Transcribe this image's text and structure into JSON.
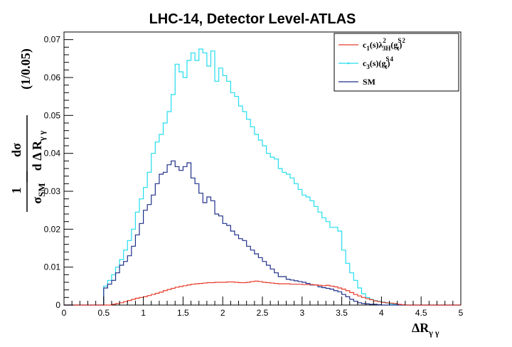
{
  "chart_data": {
    "type": "line",
    "step": true,
    "title": "LHC-14, Detector Level-ATLAS",
    "xlabel": "ΔR",
    "xlabel_sub": "γ γ",
    "ylabel_dsigma_num": "dσ",
    "ylabel_dsigma_den": "d  Δ R",
    "ylabel_dsigma_den_sub": "γ γ",
    "ylabel_norm_num": "1",
    "ylabel_norm_den": "σ",
    "ylabel_norm_den_sub": "SM",
    "ylabel_binwidth": "(1/0.05)",
    "xlim": [
      0,
      5
    ],
    "ylim": [
      0,
      0.072
    ],
    "bin_width": 0.05,
    "x_ticks": [
      "0",
      "0.5",
      "1",
      "1.5",
      "2",
      "2.5",
      "3",
      "3.5",
      "4",
      "4.5",
      "5"
    ],
    "y_ticks": [
      "0",
      "0.01",
      "0.02",
      "0.03",
      "0.04",
      "0.05",
      "0.06",
      "0.07"
    ],
    "grid": false,
    "legend_position": "top-right",
    "series": [
      {
        "key": "c1",
        "color": "#e83a2a",
        "values": [
          0,
          0,
          0,
          0,
          0,
          0,
          0,
          0,
          0,
          0,
          0,
          0,
          0.0002,
          0.0004,
          0.0006,
          0.0009,
          0.0012,
          0.0015,
          0.0018,
          0.002,
          0.0022,
          0.0025,
          0.0028,
          0.0031,
          0.0034,
          0.0038,
          0.0041,
          0.0044,
          0.0047,
          0.0049,
          0.0051,
          0.0053,
          0.0055,
          0.0056,
          0.0057,
          0.0058,
          0.0059,
          0.0059,
          0.006,
          0.006,
          0.006,
          0.0061,
          0.0061,
          0.006,
          0.0059,
          0.0059,
          0.006,
          0.0062,
          0.0063,
          0.0062,
          0.006,
          0.0059,
          0.0058,
          0.0057,
          0.0056,
          0.0056,
          0.0056,
          0.0055,
          0.0055,
          0.0055,
          0.0054,
          0.0054,
          0.0054,
          0.0053,
          0.0052,
          0.0051,
          0.0052,
          0.005,
          0.0048,
          0.0045,
          0.0042,
          0.0038,
          0.0033,
          0.0028,
          0.0024,
          0.002,
          0.0017,
          0.0014,
          0.0011,
          0.0009,
          0.0007,
          0.0006,
          0.0005,
          0.0004,
          0.0002,
          0.0001,
          0,
          0,
          0,
          0,
          0,
          0,
          0,
          0,
          0,
          0,
          0,
          0,
          0,
          0
        ]
      },
      {
        "key": "c3",
        "color": "#22ddee",
        "values": [
          0,
          0,
          0,
          0,
          0,
          0,
          0,
          0,
          0,
          0,
          0.005,
          0.0065,
          0.008,
          0.01,
          0.012,
          0.0145,
          0.017,
          0.02,
          0.0245,
          0.028,
          0.031,
          0.035,
          0.04,
          0.043,
          0.045,
          0.048,
          0.051,
          0.0555,
          0.0635,
          0.0615,
          0.06,
          0.0645,
          0.0665,
          0.0645,
          0.0675,
          0.0665,
          0.063,
          0.067,
          0.059,
          0.0625,
          0.0605,
          0.059,
          0.056,
          0.055,
          0.0525,
          0.051,
          0.049,
          0.047,
          0.045,
          0.0435,
          0.042,
          0.04,
          0.039,
          0.0385,
          0.036,
          0.035,
          0.0345,
          0.0335,
          0.032,
          0.0305,
          0.029,
          0.0285,
          0.0275,
          0.026,
          0.0245,
          0.023,
          0.022,
          0.0205,
          0.0205,
          0.0195,
          0.0145,
          0.011,
          0.0085,
          0.0065,
          0.0045,
          0.003,
          0.002,
          0.0015,
          0.0012,
          0.001,
          0.0008,
          0.0005,
          0.0003,
          0.0002,
          0.0001,
          0,
          0,
          0,
          0,
          0,
          0,
          0,
          0,
          0,
          0,
          0,
          0,
          0,
          0,
          0
        ]
      },
      {
        "key": "sm",
        "color": "#1f2f8a",
        "values": [
          0,
          0,
          0,
          0,
          0,
          0,
          0,
          0,
          0,
          0,
          0.0045,
          0.0055,
          0.0065,
          0.0085,
          0.0105,
          0.0115,
          0.013,
          0.0155,
          0.0185,
          0.0215,
          0.025,
          0.0265,
          0.029,
          0.032,
          0.0345,
          0.035,
          0.037,
          0.038,
          0.0365,
          0.0355,
          0.0365,
          0.0375,
          0.0335,
          0.032,
          0.0295,
          0.027,
          0.0285,
          0.0275,
          0.024,
          0.0235,
          0.0215,
          0.021,
          0.0195,
          0.0185,
          0.0175,
          0.017,
          0.0155,
          0.0145,
          0.0135,
          0.0125,
          0.0115,
          0.0105,
          0.0095,
          0.0085,
          0.0075,
          0.0075,
          0.0068,
          0.0066,
          0.0064,
          0.0062,
          0.006,
          0.0057,
          0.0053,
          0.0053,
          0.0048,
          0.0046,
          0.0044,
          0.0042,
          0.0038,
          0.0035,
          0.0028,
          0.0022,
          0.0015,
          0.001,
          0.0006,
          0.0004,
          0.0003,
          0.0002,
          0.0002,
          0.0001,
          0,
          0,
          0,
          0,
          0,
          0,
          0,
          0,
          0,
          0,
          0,
          0,
          0,
          0,
          0,
          0,
          0,
          0,
          0,
          0
        ]
      }
    ],
    "legend": {
      "c1": {
        "t1": "c",
        "s1": "1",
        "t2": "(s)λ",
        "sup2": "2",
        "sub2": "3H",
        "t3": "(g",
        "sup3": "S",
        "sub3": "t",
        "t4": ")",
        "sup4": "2"
      },
      "c3": {
        "t1": "c",
        "s1": "3",
        "t2": "(s)(g",
        "sup2": "S",
        "sub2": "t",
        "t3": ")",
        "sup3": "4"
      },
      "sm": {
        "t1": "SM"
      }
    }
  }
}
